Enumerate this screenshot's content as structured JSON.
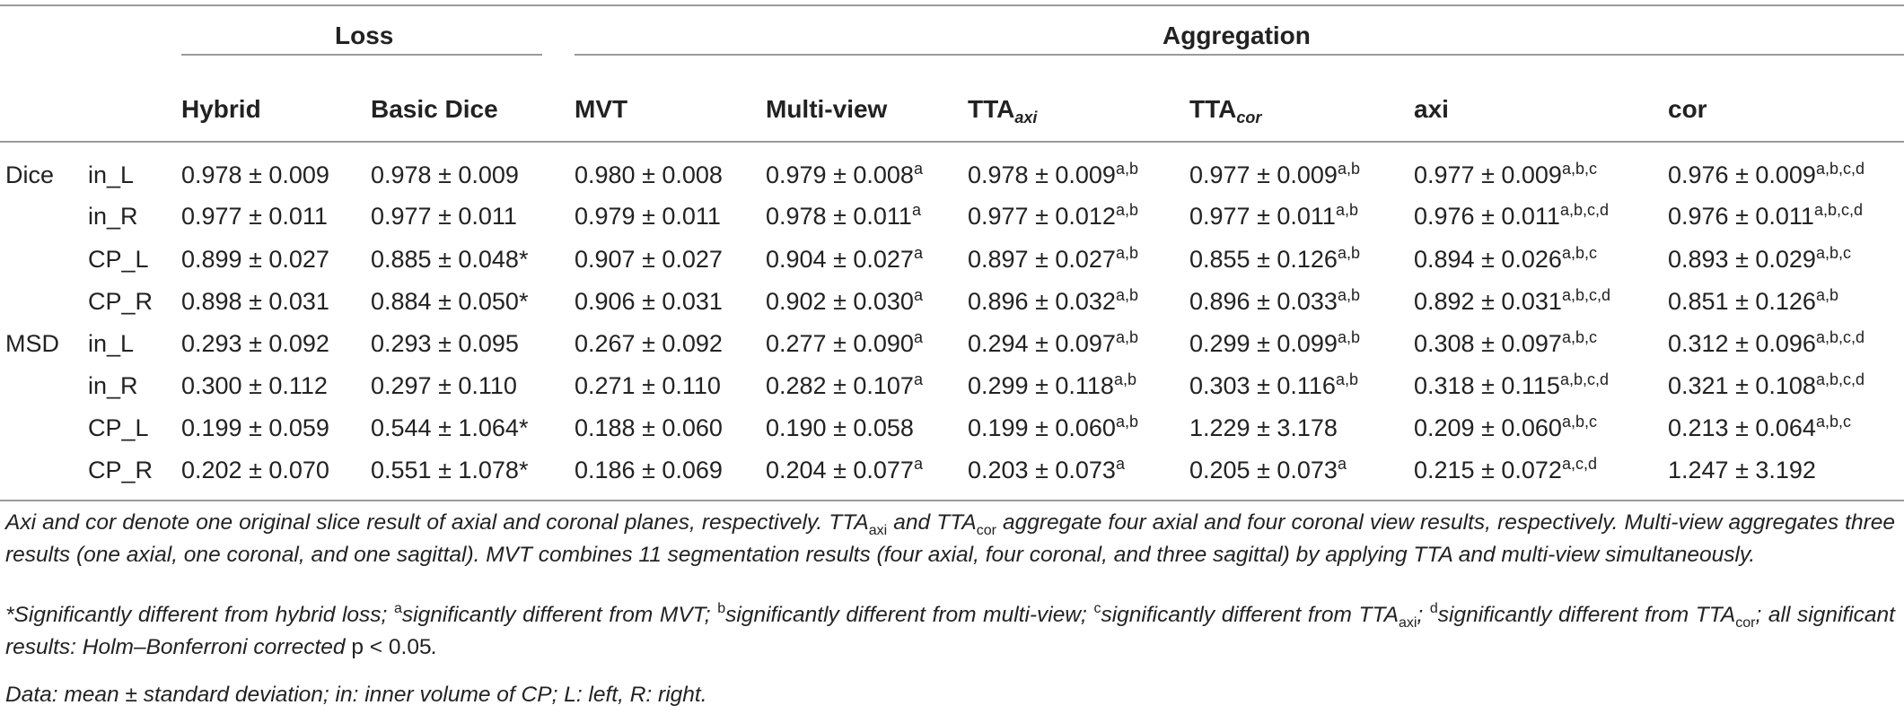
{
  "table": {
    "group_headers": {
      "loss": "Loss",
      "aggregation": "Aggregation"
    },
    "columns": [
      {
        "key": "hybrid",
        "label": "Hybrid",
        "sub": ""
      },
      {
        "key": "basic_dice",
        "label": "Basic Dice",
        "sub": ""
      },
      {
        "key": "mvt",
        "label": "MVT",
        "sub": ""
      },
      {
        "key": "multi_view",
        "label": "Multi-view",
        "sub": ""
      },
      {
        "key": "tta_axi",
        "label": "TTA",
        "sub": "axi"
      },
      {
        "key": "tta_cor",
        "label": "TTA",
        "sub": "cor"
      },
      {
        "key": "axi",
        "label": "axi",
        "sub": ""
      },
      {
        "key": "cor",
        "label": "cor",
        "sub": ""
      }
    ],
    "rows": [
      {
        "metric": "Dice",
        "region": "in_L",
        "cells": [
          {
            "v": "0.978 ± 0.009",
            "s": ""
          },
          {
            "v": "0.978 ± 0.009",
            "s": ""
          },
          {
            "v": "0.980 ± 0.008",
            "s": ""
          },
          {
            "v": "0.979 ± 0.008",
            "s": "a"
          },
          {
            "v": "0.978 ± 0.009",
            "s": "a,b"
          },
          {
            "v": "0.977 ± 0.009",
            "s": "a,b"
          },
          {
            "v": "0.977 ± 0.009",
            "s": "a,b,c"
          },
          {
            "v": "0.976 ± 0.009",
            "s": "a,b,c,d"
          }
        ]
      },
      {
        "metric": "",
        "region": "in_R",
        "cells": [
          {
            "v": "0.977 ± 0.011",
            "s": ""
          },
          {
            "v": "0.977 ± 0.011",
            "s": ""
          },
          {
            "v": "0.979 ± 0.011",
            "s": ""
          },
          {
            "v": "0.978 ± 0.011",
            "s": "a"
          },
          {
            "v": "0.977 ± 0.012",
            "s": "a,b"
          },
          {
            "v": "0.977 ± 0.011",
            "s": "a,b"
          },
          {
            "v": "0.976 ± 0.011",
            "s": "a,b,c,d"
          },
          {
            "v": "0.976 ± 0.011",
            "s": "a,b,c,d"
          }
        ]
      },
      {
        "metric": "",
        "region": "CP_L",
        "cells": [
          {
            "v": "0.899 ± 0.027",
            "s": ""
          },
          {
            "v": "0.885 ± 0.048*",
            "s": ""
          },
          {
            "v": "0.907 ± 0.027",
            "s": ""
          },
          {
            "v": "0.904 ± 0.027",
            "s": "a"
          },
          {
            "v": "0.897 ± 0.027",
            "s": "a,b"
          },
          {
            "v": "0.855 ± 0.126",
            "s": "a,b"
          },
          {
            "v": "0.894 ± 0.026",
            "s": "a,b,c"
          },
          {
            "v": "0.893 ± 0.029",
            "s": "a,b,c"
          }
        ]
      },
      {
        "metric": "",
        "region": "CP_R",
        "cells": [
          {
            "v": "0.898 ± 0.031",
            "s": ""
          },
          {
            "v": "0.884 ± 0.050*",
            "s": ""
          },
          {
            "v": "0.906 ± 0.031",
            "s": ""
          },
          {
            "v": "0.902 ± 0.030",
            "s": "a"
          },
          {
            "v": "0.896 ± 0.032",
            "s": "a,b"
          },
          {
            "v": "0.896 ± 0.033",
            "s": "a,b"
          },
          {
            "v": "0.892 ± 0.031",
            "s": "a,b,c,d"
          },
          {
            "v": "0.851 ± 0.126",
            "s": "a,b"
          }
        ]
      },
      {
        "metric": "MSD",
        "region": "in_L",
        "cells": [
          {
            "v": "0.293 ± 0.092",
            "s": ""
          },
          {
            "v": "0.293 ± 0.095",
            "s": ""
          },
          {
            "v": "0.267 ± 0.092",
            "s": ""
          },
          {
            "v": "0.277 ± 0.090",
            "s": "a"
          },
          {
            "v": "0.294 ± 0.097",
            "s": "a,b"
          },
          {
            "v": "0.299 ± 0.099",
            "s": "a,b"
          },
          {
            "v": "0.308 ± 0.097",
            "s": "a,b,c"
          },
          {
            "v": "0.312 ± 0.096",
            "s": "a,b,c,d"
          }
        ]
      },
      {
        "metric": "",
        "region": "in_R",
        "cells": [
          {
            "v": "0.300 ± 0.112",
            "s": ""
          },
          {
            "v": "0.297 ± 0.110",
            "s": ""
          },
          {
            "v": "0.271 ± 0.110",
            "s": ""
          },
          {
            "v": "0.282 ± 0.107",
            "s": "a"
          },
          {
            "v": "0.299 ± 0.118",
            "s": "a,b"
          },
          {
            "v": "0.303 ± 0.116",
            "s": "a,b"
          },
          {
            "v": "0.318 ± 0.115",
            "s": "a,b,c,d"
          },
          {
            "v": "0.321 ± 0.108",
            "s": "a,b,c,d"
          }
        ]
      },
      {
        "metric": "",
        "region": "CP_L",
        "cells": [
          {
            "v": "0.199 ± 0.059",
            "s": ""
          },
          {
            "v": "0.544 ± 1.064*",
            "s": ""
          },
          {
            "v": "0.188 ± 0.060",
            "s": ""
          },
          {
            "v": "0.190 ± 0.058",
            "s": ""
          },
          {
            "v": "0.199 ± 0.060",
            "s": "a,b"
          },
          {
            "v": "1.229 ± 3.178",
            "s": ""
          },
          {
            "v": "0.209 ± 0.060",
            "s": "a,b,c"
          },
          {
            "v": "0.213 ± 0.064",
            "s": "a,b,c"
          }
        ]
      },
      {
        "metric": "",
        "region": "CP_R",
        "cells": [
          {
            "v": "0.202 ± 0.070",
            "s": ""
          },
          {
            "v": "0.551 ± 1.078*",
            "s": ""
          },
          {
            "v": "0.186 ± 0.069",
            "s": ""
          },
          {
            "v": "0.204 ± 0.077",
            "s": "a"
          },
          {
            "v": "0.203 ± 0.073",
            "s": "a"
          },
          {
            "v": "0.205 ± 0.073",
            "s": "a"
          },
          {
            "v": "0.215 ± 0.072",
            "s": "a,c,d"
          },
          {
            "v": "1.247 ± 3.192",
            "s": ""
          }
        ]
      }
    ]
  },
  "footnotes": {
    "n1": {
      "p1": "Axi and cor denote one original slice result of axial and coronal planes, respectively. TTA",
      "sub1": "axi",
      "p2": " and TTA",
      "sub2": "cor",
      "p3": " aggregate four axial and four coronal view results, respectively. Multi-view aggregates three results (one axial, one coronal, and one sagittal). MVT combines 11 segmentation results (four axial, four coronal, and three sagittal) by applying TTA and multi-view simultaneously."
    },
    "n2": {
      "p1": "*Significantly different from hybrid loss; ",
      "sa": "a",
      "p2": "significantly different from MVT; ",
      "sb": "b",
      "p3": "significantly different from multi-view; ",
      "sc": "c",
      "p4": "significantly different from TTA",
      "sub1": "axi",
      "p5": "; ",
      "sd": "d",
      "p6": "significantly different from TTA",
      "sub2": "cor",
      "p7": "; all significant results: Holm–Bonferroni corrected ",
      "pval": "p  <  0.05",
      "p8": "."
    },
    "n3": "Data: mean ± standard deviation; in: inner volume of CP; L: left, R: right."
  }
}
